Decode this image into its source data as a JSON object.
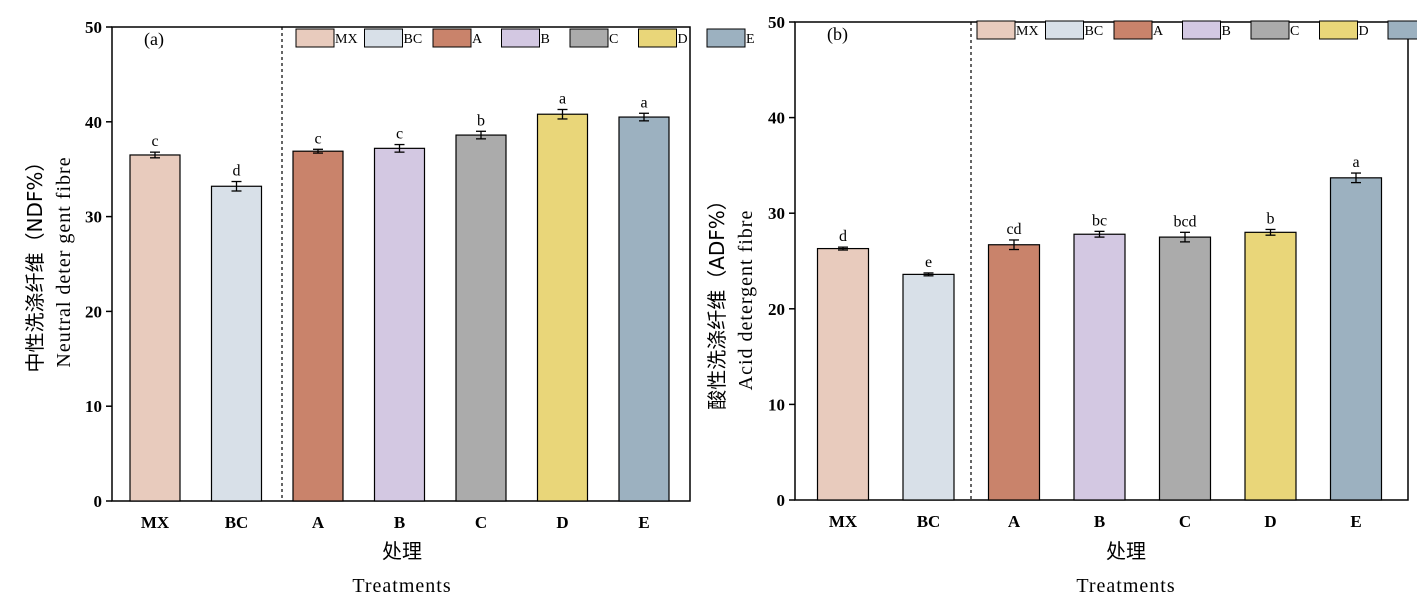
{
  "chart_data": [
    {
      "type": "bar",
      "panel_label": "(a)",
      "categories": [
        "MX",
        "BC",
        "A",
        "B",
        "C",
        "D",
        "E"
      ],
      "values": [
        36.5,
        33.2,
        36.9,
        37.2,
        38.6,
        40.8,
        40.5
      ],
      "errors": [
        0.3,
        0.5,
        0.2,
        0.4,
        0.4,
        0.5,
        0.4
      ],
      "significance": [
        "c",
        "d",
        "c",
        "c",
        "b",
        "a",
        "a"
      ],
      "colors": [
        "#e8cbbd",
        "#d8e0e8",
        "#c9836b",
        "#d3c8e2",
        "#ababab",
        "#e9d679",
        "#9cb1c0"
      ],
      "ylim": [
        0,
        50
      ],
      "yticks": [
        0,
        10,
        20,
        30,
        40,
        50
      ],
      "ylabel_cn": "中性洗涤纤维（NDF%）",
      "ylabel_en": "Neutral deter gent fibre",
      "xlabel_cn": "处理",
      "xlabel_en": "Treatments",
      "legend": [
        "MX",
        "BC",
        "A",
        "B",
        "C",
        "D",
        "E"
      ],
      "legend_position": "top-right",
      "divider": "dashed line between BC and A"
    },
    {
      "type": "bar",
      "panel_label": "(b)",
      "categories": [
        "MX",
        "BC",
        "A",
        "B",
        "C",
        "D",
        "E"
      ],
      "values": [
        26.3,
        23.6,
        26.7,
        27.8,
        27.5,
        28.0,
        33.7
      ],
      "errors": [
        0.15,
        0.15,
        0.5,
        0.3,
        0.5,
        0.3,
        0.5
      ],
      "significance": [
        "d",
        "e",
        "cd",
        "bc",
        "bcd",
        "b",
        "a"
      ],
      "colors": [
        "#e8cbbd",
        "#d8e0e8",
        "#c9836b",
        "#d3c8e2",
        "#ababab",
        "#e9d679",
        "#9cb1c0"
      ],
      "ylim": [
        0,
        50
      ],
      "yticks": [
        0,
        10,
        20,
        30,
        40,
        50
      ],
      "ylabel_cn": "酸性洗涤纤维（ADF%）",
      "ylabel_en": "Acid detergent fibre",
      "xlabel_cn": "处理",
      "xlabel_en": "Treatments",
      "legend": [
        "MX",
        "BC",
        "A",
        "B",
        "C",
        "D",
        "E"
      ],
      "legend_position": "top-right",
      "divider": "dashed line between BC and A"
    }
  ]
}
